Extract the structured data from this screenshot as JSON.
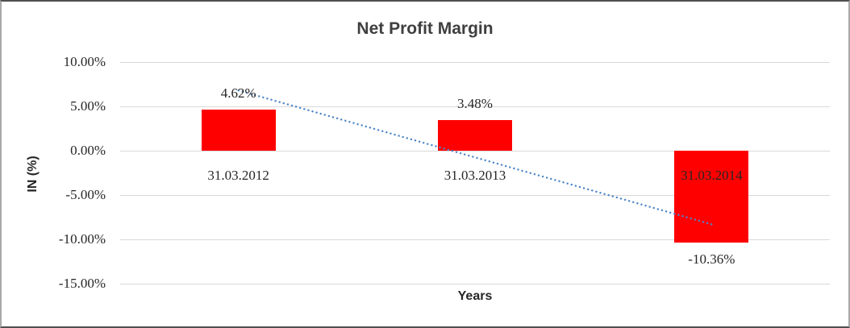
{
  "chart_data": {
    "type": "bar",
    "title": "Net Profit Margin",
    "xlabel": "Years",
    "ylabel": "IN (%)",
    "categories": [
      "31.03.2012",
      "31.03.2013",
      "31.03.2014"
    ],
    "values": [
      4.62,
      3.48,
      -10.36
    ],
    "data_labels": [
      "4.62%",
      "3.48%",
      "-10.36%"
    ],
    "ylim": [
      -15,
      10
    ],
    "yticks": [
      10,
      5,
      0,
      -5,
      -10,
      -15
    ],
    "ytick_labels": [
      "10.00%",
      "5.00%",
      "0.00%",
      "-5.00%",
      "-10.00%",
      "-15.00%"
    ],
    "grid": true,
    "legend": false,
    "bar_color": "#ff0000",
    "trendline": {
      "style": "dotted",
      "color": "#4e86c8",
      "start_value": 6.8,
      "end_value": -8.3
    }
  },
  "colors": {
    "gridline": "#d9d9d9",
    "title_text": "#3f3f3f",
    "axis_text": "#262626",
    "frame_dark": "#4f4f4f",
    "frame_light": "#a9a9a9"
  }
}
